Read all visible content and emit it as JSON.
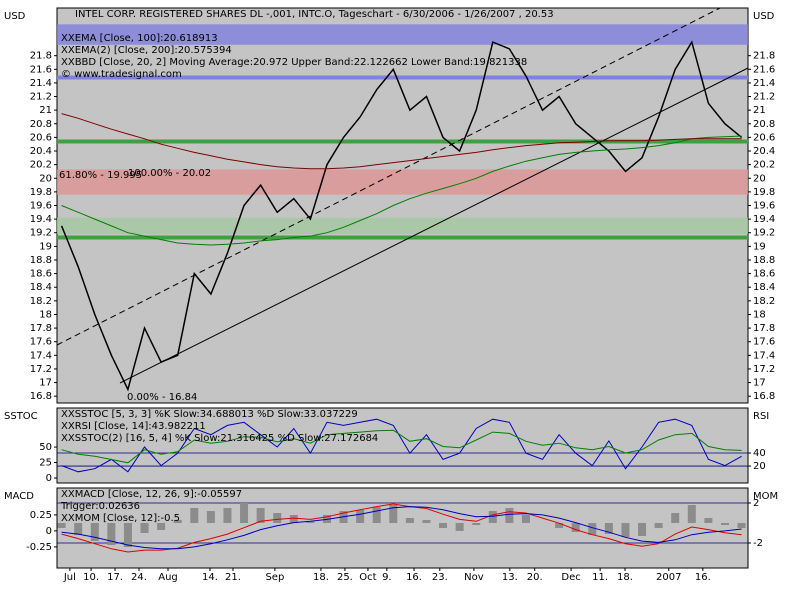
{
  "chart_data": [
    {
      "type": "line",
      "title": "INTEL CORP. REGISTERED SHARES DL -,001, INTC.O, Tageschart - 6/30/2006 - 1/26/2007 , 20.53",
      "ylabel": "USD",
      "legend_texts": [
        {
          "text": "XXEMA [Close, 100]:20.618913",
          "color": "#008000"
        },
        {
          "text": "XXEMA(2) [Close, 200]:20.575394",
          "color": "#800000"
        },
        {
          "text": "XXBBD [Close, 20, 2] Moving Average:20.972 Upper Band:22.122662 Lower Band:19.821338",
          "color": "#e00000"
        },
        {
          "text": "© www.tradesignal.com",
          "color": "#000000"
        }
      ],
      "annotations": [
        "61.80% - 19.995",
        "100.00% - 20.02",
        "0.00% - 16.84"
      ],
      "zones": [
        {
          "from": 21.96,
          "to": 22.26,
          "color": "#8080e0"
        },
        {
          "from": 19.76,
          "to": 20.13,
          "color": "#e09494"
        },
        {
          "from": 19.18,
          "to": 19.42,
          "color": "#a4c8a0"
        }
      ],
      "levels": [
        {
          "value": 20.54,
          "color": "#40a040"
        },
        {
          "value": 19.13,
          "color": "#40a040"
        },
        {
          "value": 21.48,
          "color": "#8080e0"
        }
      ],
      "xlim": [
        0,
        150
      ],
      "x": [
        1,
        4.6,
        8.2,
        11.8,
        15.4,
        19,
        22.6,
        26.2,
        29.8,
        33.4,
        37,
        40.6,
        44.2,
        47.8,
        51.4,
        55,
        58.6,
        62.2,
        65.8,
        69.4,
        73,
        76.6,
        80.2,
        83.8,
        87.4,
        91,
        94.6,
        98.2,
        101.8,
        105.4,
        109,
        112.6,
        116.2,
        119.8,
        123.4,
        127,
        130.6,
        134.2,
        137.8,
        141.4,
        145,
        148.6
      ],
      "ylim": [
        16.7,
        22.5
      ],
      "yticks": [
        16.8,
        17,
        17.2,
        17.4,
        17.6,
        17.8,
        18,
        18.2,
        18.4,
        18.6,
        18.8,
        19,
        19.2,
        19.4,
        19.6,
        19.8,
        20,
        20.2,
        20.4,
        20.6,
        20.8,
        21,
        21.2,
        21.4,
        21.6,
        21.8
      ],
      "series": [
        {
          "name": "Close",
          "color": "#000000",
          "values": [
            19.3,
            18.7,
            18.0,
            17.4,
            16.9,
            17.8,
            17.3,
            17.4,
            18.6,
            18.3,
            18.9,
            19.6,
            19.9,
            19.5,
            19.7,
            19.4,
            20.2,
            20.6,
            20.9,
            21.3,
            21.6,
            21.0,
            21.2,
            20.6,
            20.4,
            21.0,
            22.0,
            21.9,
            21.5,
            21.0,
            21.2,
            20.8,
            20.6,
            20.4,
            20.1,
            20.3,
            20.9,
            21.6,
            22.0,
            21.1,
            20.8,
            20.6
          ]
        },
        {
          "name": "EMA 100",
          "color": "#008000",
          "values": [
            19.6,
            19.5,
            19.4,
            19.3,
            19.2,
            19.15,
            19.1,
            19.05,
            19.03,
            19.02,
            19.03,
            19.05,
            19.08,
            19.1,
            19.13,
            19.15,
            19.2,
            19.28,
            19.38,
            19.48,
            19.6,
            19.7,
            19.78,
            19.85,
            19.92,
            20.0,
            20.1,
            20.18,
            20.25,
            20.3,
            20.35,
            20.38,
            20.4,
            20.42,
            20.43,
            20.45,
            20.48,
            20.52,
            20.58,
            20.6,
            20.61,
            20.62
          ]
        },
        {
          "name": "EMA 200",
          "color": "#800000",
          "values": [
            20.95,
            20.88,
            20.8,
            20.72,
            20.65,
            20.58,
            20.5,
            20.44,
            20.38,
            20.33,
            20.28,
            20.24,
            20.2,
            20.17,
            20.15,
            20.14,
            20.14,
            20.15,
            20.17,
            20.2,
            20.23,
            20.26,
            20.29,
            20.32,
            20.35,
            20.38,
            20.42,
            20.45,
            20.48,
            20.5,
            20.52,
            20.53,
            20.54,
            20.55,
            20.55,
            20.55,
            20.56,
            20.57,
            20.58,
            20.58,
            20.58,
            20.58
          ]
        }
      ]
    },
    {
      "type": "line",
      "ylabel": "SSTOC",
      "y2label": "RSI",
      "legend_texts": [
        {
          "text": "XXSSTOC [5, 3, 3] %K Slow:34.688013 %D Slow:33.037229",
          "color": "#0000c0"
        },
        {
          "text": "XXRSI [Close, 14]:43.982211",
          "color": "#008000"
        },
        {
          "text": "XXSSTOC(2) [16, 5, 4] %K Slow:21.316425 %D Slow:27.172684",
          "color": "#000000"
        }
      ],
      "xlim": [
        0,
        150
      ],
      "x": [
        1,
        4.6,
        8.2,
        11.8,
        15.4,
        19,
        22.6,
        26.2,
        29.8,
        33.4,
        37,
        40.6,
        44.2,
        47.8,
        51.4,
        55,
        58.6,
        62.2,
        65.8,
        69.4,
        73,
        76.6,
        80.2,
        83.8,
        87.4,
        91,
        94.6,
        98.2,
        101.8,
        105.4,
        109,
        112.6,
        116.2,
        119.8,
        123.4,
        127,
        130.6,
        134.2,
        137.8,
        141.4,
        145,
        148.6
      ],
      "ylim": [
        -8,
        113
      ],
      "yticks": [
        0,
        25,
        50
      ],
      "y2lim": [
        -6,
        109
      ],
      "y2ticks": [
        20,
        40
      ],
      "series": [
        {
          "name": "%K Slow",
          "color": "#0000c0",
          "values": [
            20,
            10,
            15,
            30,
            10,
            50,
            20,
            40,
            80,
            70,
            85,
            90,
            70,
            50,
            80,
            40,
            90,
            85,
            90,
            95,
            85,
            40,
            70,
            30,
            40,
            80,
            95,
            90,
            40,
            30,
            70,
            40,
            20,
            60,
            15,
            50,
            90,
            95,
            85,
            30,
            20,
            35
          ]
        },
        {
          "name": "RSI",
          "color": "#008000",
          "axis": "y2",
          "values": [
            45,
            38,
            35,
            30,
            25,
            45,
            38,
            42,
            60,
            55,
            58,
            65,
            64,
            57,
            62,
            55,
            68,
            70,
            72,
            74,
            75,
            58,
            62,
            50,
            48,
            60,
            72,
            70,
            58,
            52,
            55,
            48,
            45,
            50,
            40,
            45,
            60,
            68,
            70,
            50,
            45,
            44
          ]
        }
      ]
    },
    {
      "type": "line",
      "ylabel": "MACD",
      "y2label": "MOM",
      "legend_texts": [
        {
          "text": "XXMACD [Close, 12, 26, 9]:-0.05597",
          "color": "#e00000"
        },
        {
          "text": "Trigger:0.02636",
          "color": "#000000"
        },
        {
          "text": "XXMOM [Close, 12]:-0.5",
          "color": "#808080"
        }
      ],
      "xlim": [
        0,
        150
      ],
      "x": [
        1,
        4.6,
        8.2,
        11.8,
        15.4,
        19,
        22.6,
        26.2,
        29.8,
        33.4,
        37,
        40.6,
        44.2,
        47.8,
        51.4,
        55,
        58.6,
        62.2,
        65.8,
        69.4,
        73,
        76.6,
        80.2,
        83.8,
        87.4,
        91,
        94.6,
        98.2,
        101.8,
        105.4,
        109,
        112.6,
        116.2,
        119.8,
        123.4,
        127,
        130.6,
        134.2,
        137.8,
        141.4,
        145,
        148.6
      ],
      "xticks": [
        {
          "value": 2.8,
          "label": "Jul"
        },
        {
          "value": 7.4,
          "label": "10."
        },
        {
          "value": 12.6,
          "label": "17."
        },
        {
          "value": 17.8,
          "label": "24."
        },
        {
          "value": 24.1,
          "label": "Aug"
        },
        {
          "value": 33.2,
          "label": "14."
        },
        {
          "value": 38.2,
          "label": "21."
        },
        {
          "value": 47.3,
          "label": "Sep"
        },
        {
          "value": 57.3,
          "label": "18."
        },
        {
          "value": 62.5,
          "label": "25."
        },
        {
          "value": 67.5,
          "label": "Oct"
        },
        {
          "value": 71.6,
          "label": "9."
        },
        {
          "value": 77.5,
          "label": "16."
        },
        {
          "value": 83.1,
          "label": "23."
        },
        {
          "value": 90.5,
          "label": "Nov"
        },
        {
          "value": 98.3,
          "label": "13."
        },
        {
          "value": 103.7,
          "label": "20."
        },
        {
          "value": 111.6,
          "label": "Dec"
        },
        {
          "value": 117.9,
          "label": "11."
        },
        {
          "value": 123.3,
          "label": "18."
        },
        {
          "value": 132.8,
          "label": "2007"
        },
        {
          "value": 140.2,
          "label": "16."
        }
      ],
      "ylim": [
        -0.58,
        0.67
      ],
      "yticks": [
        0.25,
        0,
        -0.25
      ],
      "y2lim": [
        -4.5,
        3.5
      ],
      "y2ticks": [
        -2,
        2
      ],
      "series": [
        {
          "name": "MOM",
          "color": "#8c8c8c",
          "axis": "y2",
          "style": "bar",
          "values": [
            -0.5,
            -1.2,
            -1.8,
            -2.2,
            -2.4,
            -1,
            -0.7,
            0.3,
            1.5,
            1.2,
            1.5,
            2,
            1.5,
            1,
            0.8,
            0.2,
            0.8,
            1.2,
            1.3,
            1.6,
            1.8,
            0.5,
            0.3,
            -0.5,
            -0.8,
            -0.2,
            1.2,
            1.5,
            0.8,
            0,
            -0.5,
            -0.9,
            -1.2,
            -1.1,
            -1.4,
            -1.3,
            -0.5,
            1,
            1.8,
            0.5,
            -0.2,
            -0.5
          ]
        },
        {
          "name": "MACD",
          "color": "#e00000",
          "values": [
            -0.05,
            -0.12,
            -0.2,
            -0.28,
            -0.33,
            -0.3,
            -0.3,
            -0.27,
            -0.18,
            -0.12,
            -0.05,
            0.05,
            0.15,
            0.18,
            0.2,
            0.18,
            0.22,
            0.28,
            0.33,
            0.38,
            0.42,
            0.38,
            0.35,
            0.26,
            0.18,
            0.15,
            0.25,
            0.3,
            0.28,
            0.2,
            0.12,
            0.02,
            -0.06,
            -0.12,
            -0.2,
            -0.24,
            -0.2,
            -0.05,
            0.06,
            0.02,
            -0.03,
            -0.06
          ]
        },
        {
          "name": "Trigger",
          "color": "#0000c0",
          "values": [
            -0.02,
            -0.05,
            -0.1,
            -0.16,
            -0.22,
            -0.26,
            -0.28,
            -0.28,
            -0.25,
            -0.2,
            -0.14,
            -0.07,
            0.02,
            0.08,
            0.13,
            0.15,
            0.18,
            0.22,
            0.26,
            0.31,
            0.36,
            0.38,
            0.37,
            0.33,
            0.27,
            0.22,
            0.23,
            0.26,
            0.27,
            0.25,
            0.2,
            0.13,
            0.05,
            -0.02,
            -0.1,
            -0.16,
            -0.18,
            -0.14,
            -0.06,
            -0.02,
            0.0,
            0.03
          ]
        }
      ]
    }
  ]
}
